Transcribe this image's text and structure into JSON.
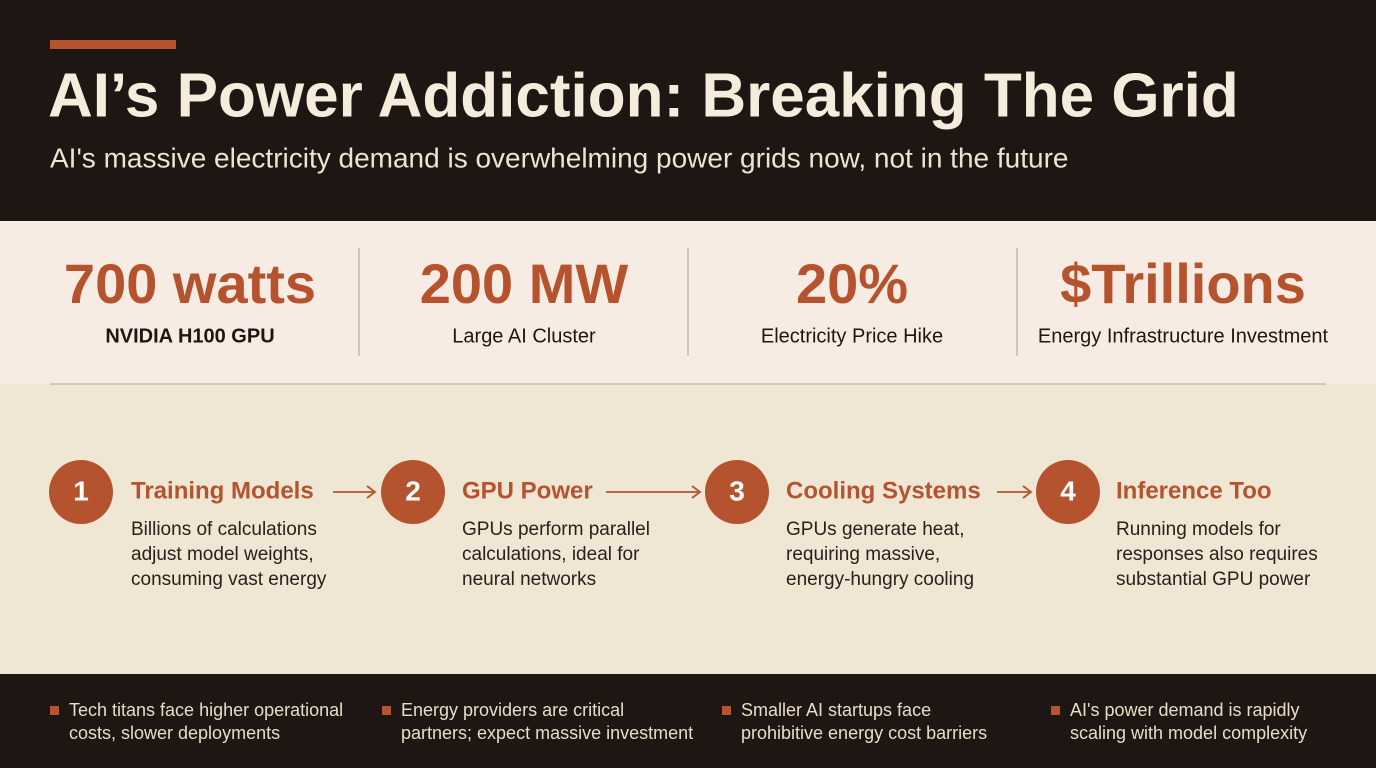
{
  "header": {
    "title": "AI’s Power Addiction: Breaking The Grid",
    "subtitle": "AI's massive electricity demand is overwhelming power grids now, not in the future"
  },
  "stats": [
    {
      "value": "700 watts",
      "label": "NVIDIA H100 GPU"
    },
    {
      "value": "200 MW",
      "label": "Large AI Cluster"
    },
    {
      "value": "20%",
      "label": "Electricity Price Hike"
    },
    {
      "value": "$Trillions",
      "label": "Energy Infrastructure Investment"
    }
  ],
  "steps": [
    {
      "number": "1",
      "title": "Training Models",
      "lines": [
        "Billions of calculations",
        "adjust model weights,",
        "consuming vast energy"
      ]
    },
    {
      "number": "2",
      "title": "GPU Power",
      "lines": [
        "GPUs perform parallel",
        "calculations, ideal for",
        "neural networks"
      ]
    },
    {
      "number": "3",
      "title": "Cooling Systems",
      "lines": [
        "GPUs generate heat,",
        "requiring massive,",
        "energy-hungry cooling"
      ]
    },
    {
      "number": "4",
      "title": "Inference Too",
      "lines": [
        "Running models for",
        "responses also requires",
        "substantial GPU power"
      ]
    }
  ],
  "impacts": [
    {
      "lines": [
        "Tech titans face higher operational",
        "costs, slower deployments"
      ]
    },
    {
      "lines": [
        "Energy providers are critical",
        "partners; expect massive investment"
      ]
    },
    {
      "lines": [
        "Smaller AI startups face",
        "prohibitive energy cost barriers"
      ]
    },
    {
      "lines": [
        "AI's power demand is rapidly",
        "scaling with model complexity"
      ]
    }
  ]
}
